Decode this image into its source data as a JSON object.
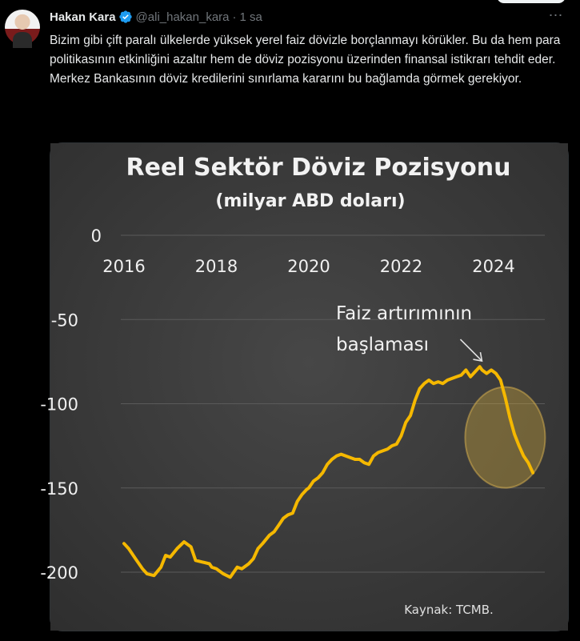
{
  "tweet": {
    "author_name": "Hakan Kara",
    "handle": "@ali_hakan_kara",
    "separator": "·",
    "time": "1 sa",
    "more_icon": "more-horizontal-icon",
    "verified_icon": "verified-badge-icon",
    "accent_color": "#1d9bf0",
    "paragraphs": [
      "Bizim gibi çift paralı ülkelerde yüksek yerel faiz dövizle borçlanmayı körükler. Bu da hem para politikasının etkinliğini azaltır hem de döviz pozisyonu üzerinden finansal istikrarı tehdit eder.",
      "Merkez Bankasının döviz kredilerini sınırlama kararını bu bağlamda görmek gerekiyor."
    ]
  },
  "chart_data": {
    "type": "line",
    "title": "Reel Sektör Döviz Pozisyonu",
    "subtitle": "(milyar ABD doları)",
    "xlabel": "",
    "ylabel": "",
    "x_ticks": [
      "2016",
      "2018",
      "2020",
      "2022",
      "2024"
    ],
    "y_ticks": [
      "0",
      "-50",
      "-100",
      "-150",
      "-200"
    ],
    "y_tick_values": [
      0,
      -50,
      -100,
      -150,
      -200
    ],
    "xlim": [
      2016,
      2025
    ],
    "ylim": [
      -210,
      0
    ],
    "grid": "horizontal",
    "line_color": "#f5b800",
    "background_color": "#3b3b3b",
    "annotation": [
      "Faiz artırımının",
      "başlaması"
    ],
    "annotation_point": [
      2023.8,
      -77
    ],
    "highlight_circle_center": [
      2024.25,
      -120
    ],
    "source": "Kaynak: TCMB.",
    "series": [
      {
        "x": [
          2016.0,
          2016.1,
          2016.25,
          2016.4,
          2016.5,
          2016.65,
          2016.8,
          2016.9,
          2017.0,
          2017.15,
          2017.3,
          2017.45,
          2017.55,
          2017.7,
          2017.85,
          2017.9,
          2018.0,
          2018.15,
          2018.3,
          2018.45,
          2018.55,
          2018.7,
          2018.8,
          2018.9,
          2019.0,
          2019.15,
          2019.25,
          2019.35,
          2019.45,
          2019.55,
          2019.65,
          2019.75,
          2019.85,
          2019.95,
          2020.0,
          2020.1,
          2020.2,
          2020.3,
          2020.4,
          2020.5,
          2020.6,
          2020.7,
          2020.8,
          2020.9,
          2021.0,
          2021.1,
          2021.2,
          2021.3,
          2021.4,
          2021.5,
          2021.6,
          2021.7,
          2021.8,
          2021.9,
          2022.0,
          2022.1,
          2022.2,
          2022.3,
          2022.4,
          2022.5,
          2022.6,
          2022.7,
          2022.8,
          2022.9,
          2023.0,
          2023.1,
          2023.2,
          2023.3,
          2023.4,
          2023.5,
          2023.6,
          2023.7,
          2023.75,
          2023.85,
          2023.95,
          2024.05,
          2024.15,
          2024.25,
          2024.35,
          2024.45,
          2024.55,
          2024.65,
          2024.75,
          2024.85
        ],
        "y": [
          -183,
          -186,
          -192,
          -198,
          -201,
          -202,
          -197,
          -190,
          -191,
          -186,
          -182,
          -185,
          -193,
          -194,
          -195,
          -197,
          -198,
          -201,
          -203,
          -197,
          -198,
          -195,
          -192,
          -186,
          -183,
          -178,
          -176,
          -172,
          -168,
          -166,
          -165,
          -158,
          -154,
          -151,
          -150,
          -146,
          -144,
          -141,
          -136,
          -133,
          -131,
          -130,
          -131,
          -132,
          -133,
          -133,
          -135,
          -136,
          -131,
          -129,
          -128,
          -127,
          -125,
          -124,
          -119,
          -111,
          -107,
          -98,
          -91,
          -88,
          -86,
          -88,
          -87,
          -88,
          -86,
          -85,
          -84,
          -83,
          -80,
          -84,
          -81,
          -78,
          -80,
          -82,
          -80,
          -82,
          -86,
          -96,
          -108,
          -118,
          -125,
          -131,
          -135,
          -141
        ]
      }
    ]
  }
}
